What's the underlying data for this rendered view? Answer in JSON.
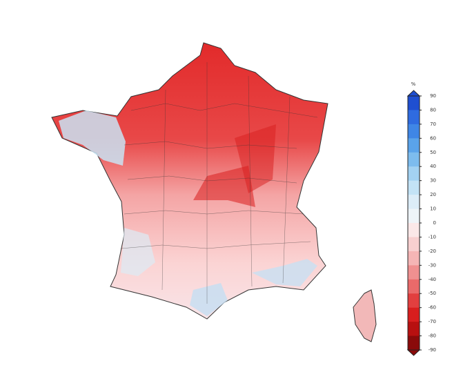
{
  "map": {
    "colorbar": {
      "unit": "%",
      "ticks": [
        90,
        80,
        70,
        60,
        50,
        40,
        30,
        20,
        10,
        0,
        -10,
        -20,
        -30,
        -40,
        -50,
        -60,
        -70,
        -80,
        -90
      ],
      "colors": [
        "#1f4fd1",
        "#2f6be0",
        "#3f86e6",
        "#5aa3ea",
        "#7dbcee",
        "#a3d2f2",
        "#c3e3f6",
        "#dcedf8",
        "#eef4f8",
        "#fbe8e8",
        "#f8d0d0",
        "#f5b5b5",
        "#f09090",
        "#ea6a6a",
        "#e23f3f",
        "#d81e1e",
        "#b81010",
        "#8a0a0a"
      ]
    }
  }
}
